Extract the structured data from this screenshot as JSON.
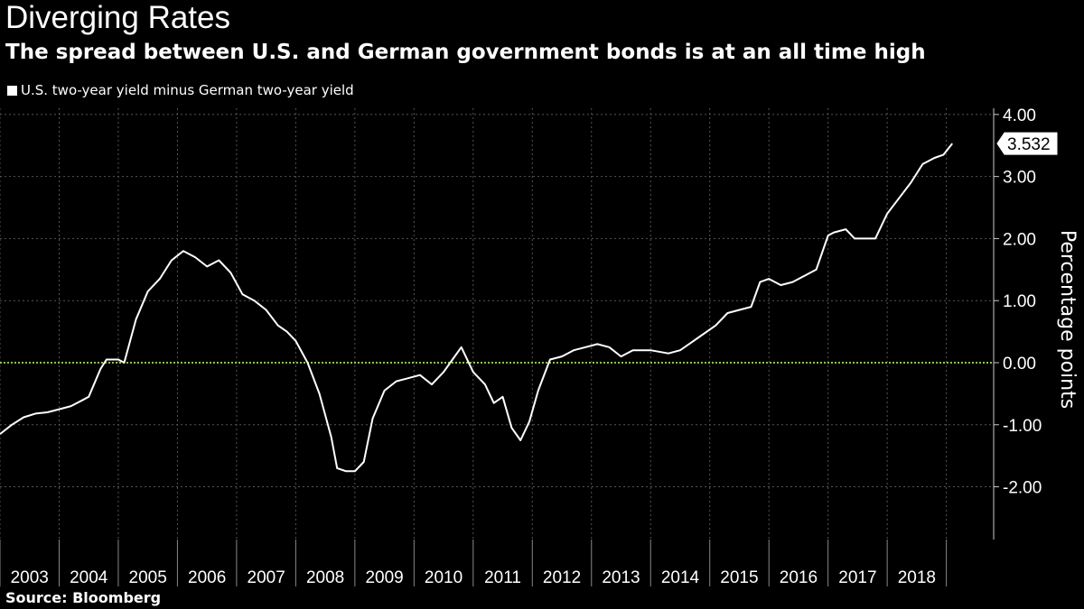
{
  "chart_data": {
    "type": "line",
    "title": "Diverging Rates",
    "subtitle": "The spread between U.S. and German government bonds is at an all time high",
    "source": "Source: Bloomberg",
    "ylabel": "Percentage points",
    "xlabel": "",
    "ylim": [
      -2.85,
      4.1
    ],
    "xlim": [
      2002.5,
      2019.3
    ],
    "y_ticks": [
      4.0,
      3.0,
      2.0,
      1.0,
      0.0,
      -1.0,
      -2.0
    ],
    "y_tick_labels": [
      "4.00",
      "3.00",
      "2.00",
      "1.00",
      "0.00",
      "-1.00",
      "-2.00"
    ],
    "x_tick_labels": [
      "2003",
      "2004",
      "2005",
      "2006",
      "2007",
      "2008",
      "2009",
      "2010",
      "2011",
      "2012",
      "2013",
      "2014",
      "2015",
      "2016",
      "2017",
      "2018"
    ],
    "grid": true,
    "zero_line_color": "#8dc63f",
    "line_color": "#ffffff",
    "last_value_label": "3.532",
    "series": [
      {
        "name": "U.S. two-year yield minus German two-year yield",
        "x": [
          2002.5,
          2002.7,
          2002.9,
          2003.1,
          2003.3,
          2003.5,
          2003.7,
          2003.9,
          2004.0,
          2004.2,
          2004.3,
          2004.5,
          2004.6,
          2004.8,
          2005.0,
          2005.2,
          2005.4,
          2005.6,
          2005.8,
          2006.0,
          2006.2,
          2006.4,
          2006.6,
          2006.8,
          2007.0,
          2007.2,
          2007.35,
          2007.5,
          2007.7,
          2007.9,
          2008.1,
          2008.2,
          2008.35,
          2008.5,
          2008.65,
          2008.8,
          2009.0,
          2009.2,
          2009.4,
          2009.6,
          2009.8,
          2010.0,
          2010.15,
          2010.3,
          2010.5,
          2010.7,
          2010.85,
          2011.0,
          2011.15,
          2011.3,
          2011.45,
          2011.6,
          2011.8,
          2012.0,
          2012.2,
          2012.4,
          2012.6,
          2012.8,
          2013.0,
          2013.2,
          2013.5,
          2013.8,
          2014.0,
          2014.3,
          2014.6,
          2014.8,
          2015.0,
          2015.2,
          2015.35,
          2015.5,
          2015.7,
          2015.9,
          2016.1,
          2016.3,
          2016.5,
          2016.6,
          2016.8,
          2016.95,
          2017.1,
          2017.3,
          2017.5,
          2017.7,
          2017.9,
          2018.1,
          2018.3,
          2018.45,
          2018.6
        ],
        "values": [
          -1.15,
          -1.0,
          -0.88,
          -0.82,
          -0.8,
          -0.75,
          -0.7,
          -0.6,
          -0.55,
          -0.1,
          0.05,
          0.05,
          0.0,
          0.7,
          1.15,
          1.35,
          1.65,
          1.8,
          1.7,
          1.55,
          1.65,
          1.45,
          1.1,
          1.0,
          0.85,
          0.6,
          0.5,
          0.35,
          0.0,
          -0.5,
          -1.2,
          -1.7,
          -1.75,
          -1.75,
          -1.6,
          -0.9,
          -0.45,
          -0.3,
          -0.25,
          -0.2,
          -0.35,
          -0.15,
          0.05,
          0.25,
          -0.15,
          -0.35,
          -0.65,
          -0.55,
          -1.05,
          -1.25,
          -0.95,
          -0.45,
          0.05,
          0.1,
          0.2,
          0.25,
          0.3,
          0.25,
          0.1,
          0.2,
          0.2,
          0.15,
          0.2,
          0.4,
          0.6,
          0.8,
          0.85,
          0.9,
          1.3,
          1.35,
          1.25,
          1.3,
          1.4,
          1.5,
          2.05,
          2.1,
          2.15,
          2.0,
          2.0,
          2.0,
          2.4,
          2.65,
          2.9,
          3.2,
          3.3,
          3.35,
          3.532
        ]
      }
    ]
  }
}
